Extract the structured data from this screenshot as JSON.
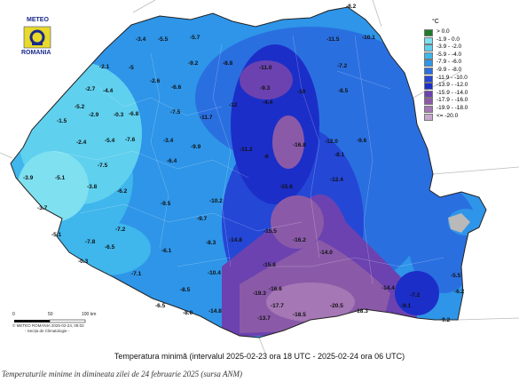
{
  "logo": {
    "line1": "METEO",
    "line2": "ROMANIA"
  },
  "legend": {
    "unit": "°C",
    "classes": [
      {
        "label": "> 0.0",
        "color": "#1e7b2a"
      },
      {
        "label": "-1.9 - 0.0",
        "color": "#7fe0f0"
      },
      {
        "label": "-3.9 - -2.0",
        "color": "#5fd0ee"
      },
      {
        "label": "-5.9 - -4.0",
        "color": "#3fb6ec"
      },
      {
        "label": "-7.9 - -6.0",
        "color": "#2e95e8"
      },
      {
        "label": "-9.9 - -8.0",
        "color": "#2a6fe0"
      },
      {
        "label": "-11.9 - -10.0",
        "color": "#2447d6"
      },
      {
        "label": "-13.9 - -12.0",
        "color": "#1c2ec8"
      },
      {
        "label": "-15.9 - -14.0",
        "color": "#6b42b0"
      },
      {
        "label": "-17.9 - -16.0",
        "color": "#8a5aa8"
      },
      {
        "label": "-19.9 - -18.0",
        "color": "#a577b5"
      },
      {
        "label": "<= -20.0",
        "color": "#c7a8cf"
      }
    ]
  },
  "map_title": "Temperatura minimă (intervalul 2025-02-23 ora 18 UTC - 2025-02-24 ora 06 UTC)",
  "scale": {
    "labels": [
      "0",
      "50",
      "100 km"
    ],
    "credit_line1": "© METEO ROMANIA 2025-02-24, 09:02",
    "credit_line2": "- Secția de Climatologie -"
  },
  "caption": "Temperaturile minime in dimineata zilei de 24 februarie 2025 (sursa ANM)",
  "stations": {
    "values": [
      "-8.2",
      "-11.5",
      "-10.1",
      "-5.7",
      "-3.4",
      "-5.5",
      "-2.1",
      "-5",
      "-2.6",
      "-9.2",
      "-8.8",
      "-7.2",
      "-2.7",
      "-4.4",
      "-6.6",
      "-11.0",
      "-9.3",
      "-10",
      "-8.5",
      "-5.2",
      "-2.9",
      "-0.3",
      "-6.8",
      "-7.5",
      "-11.7",
      "-12",
      "-4.4",
      "-1.5",
      "-2.4",
      "-5.4",
      "-7.6",
      "-3.4",
      "-9.9",
      "-16.8",
      "-12.0",
      "-9.6",
      "-3.9",
      "-5.1",
      "-7.5",
      "-6.4",
      "-11.2",
      "-6",
      "-8.1",
      "-3.8",
      "-15.6",
      "-12.4",
      "-3.7",
      "-6.2",
      "-9.5",
      "-10.2",
      "-9.7",
      "-7.2",
      "-7.8",
      "-6.5",
      "-6.1",
      "-14.8",
      "-16.2",
      "-15.5",
      "-5.1",
      "-0.3",
      "-8.3",
      "-10.4",
      "-15.8",
      "-14.0",
      "-16.6",
      "-7.1",
      "-8.5",
      "-6.5",
      "-8.0",
      "-14.8",
      "-19.3",
      "-17.7",
      "-18.5",
      "-20.5",
      "-18.3",
      "-5.5",
      "-6.2",
      "-7.2",
      "-9.1",
      "-14.4",
      "-13.7",
      "-9.2"
    ]
  }
}
